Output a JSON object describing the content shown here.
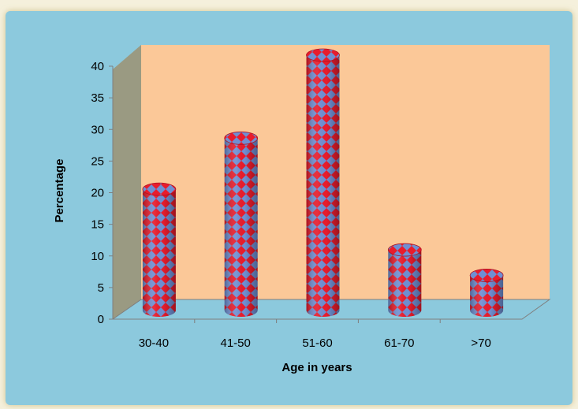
{
  "chart_data": {
    "type": "bar",
    "style": "3d-cylinder",
    "categories": [
      "30-40",
      "41-50",
      "51-60",
      "61-70",
      ">70"
    ],
    "values": [
      19,
      27,
      40,
      9.5,
      5.5
    ],
    "xlabel": "Age in years",
    "ylabel": "Percentage",
    "ylim": [
      0,
      40
    ],
    "yticks": [
      0,
      5,
      10,
      15,
      20,
      25,
      30,
      35,
      40
    ],
    "grid": false,
    "legend": "none"
  },
  "colors": {
    "outer_background": "#8cc9dd",
    "plot_wall": "#fbc898",
    "side_wall": "#9a9a82",
    "bar_red": "#e81c2c",
    "bar_blue": "#6f8fd2",
    "axis": "#7f7f7f"
  }
}
